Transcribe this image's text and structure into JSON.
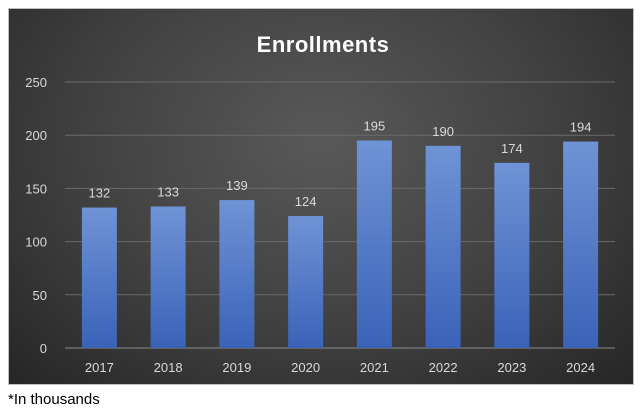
{
  "footnote": "*In thousands",
  "chart_data": {
    "type": "bar",
    "title": "Enrollments",
    "xlabel": "",
    "ylabel": "",
    "categories": [
      "2017",
      "2018",
      "2019",
      "2020",
      "2021",
      "2022",
      "2023",
      "2024"
    ],
    "values": [
      132,
      133,
      139,
      124,
      195,
      190,
      174,
      194
    ],
    "ylim": [
      0,
      250
    ],
    "yticks": [
      0,
      50,
      100,
      150,
      200,
      250
    ],
    "grid": true,
    "legend": "none",
    "bar_color": "#4472C4",
    "background_color": "#404040"
  }
}
